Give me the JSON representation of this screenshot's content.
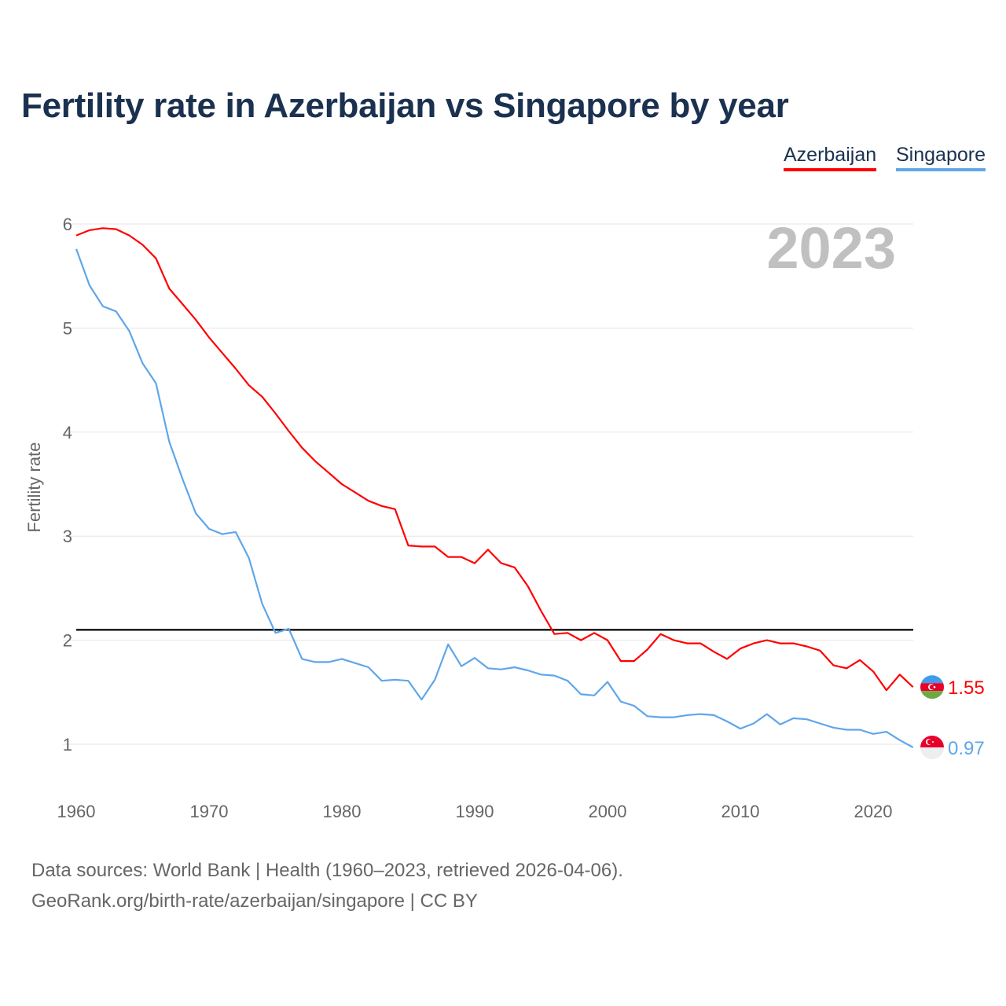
{
  "chart_data": {
    "type": "line",
    "title": "Fertility rate in Azerbaijan vs Singapore by year",
    "xlabel": "",
    "ylabel": "Fertility rate",
    "xlim": [
      1960,
      2023
    ],
    "ylim": [
      0.5,
      6.2
    ],
    "x_ticks": [
      1960,
      1970,
      1980,
      1990,
      2000,
      2010,
      2020
    ],
    "y_ticks": [
      1,
      2,
      3,
      4,
      5,
      6
    ],
    "grid": true,
    "year_label": "2023",
    "reference_line": 2.1,
    "x": [
      1960,
      1961,
      1962,
      1963,
      1964,
      1965,
      1966,
      1967,
      1968,
      1969,
      1970,
      1971,
      1972,
      1973,
      1974,
      1975,
      1976,
      1977,
      1978,
      1979,
      1980,
      1981,
      1982,
      1983,
      1984,
      1985,
      1986,
      1987,
      1988,
      1989,
      1990,
      1991,
      1992,
      1993,
      1994,
      1995,
      1996,
      1997,
      1998,
      1999,
      2000,
      2001,
      2002,
      2003,
      2004,
      2005,
      2006,
      2007,
      2008,
      2009,
      2010,
      2011,
      2012,
      2013,
      2014,
      2015,
      2016,
      2017,
      2018,
      2019,
      2020,
      2021,
      2022,
      2023
    ],
    "series": [
      {
        "name": "Azerbaijan",
        "color": "#ff0000",
        "end_label": "1.55",
        "values": [
          5.89,
          5.94,
          5.96,
          5.95,
          5.89,
          5.8,
          5.67,
          5.38,
          5.23,
          5.08,
          4.91,
          4.76,
          4.61,
          4.45,
          4.34,
          4.18,
          4.01,
          3.85,
          3.72,
          3.61,
          3.5,
          3.42,
          3.34,
          3.29,
          3.26,
          2.91,
          2.9,
          2.9,
          2.8,
          2.8,
          2.74,
          2.87,
          2.74,
          2.7,
          2.52,
          2.28,
          2.06,
          2.07,
          2.0,
          2.07,
          2.0,
          1.8,
          1.8,
          1.91,
          2.06,
          2.0,
          1.97,
          1.97,
          1.89,
          1.82,
          1.92,
          1.97,
          2.0,
          1.97,
          1.97,
          1.94,
          1.9,
          1.76,
          1.73,
          1.81,
          1.7,
          1.52,
          1.67,
          1.55
        ]
      },
      {
        "name": "Singapore",
        "color": "#5fa6ea",
        "end_label": "0.97",
        "values": [
          5.76,
          5.41,
          5.21,
          5.16,
          4.97,
          4.66,
          4.47,
          3.91,
          3.55,
          3.22,
          3.07,
          3.02,
          3.04,
          2.79,
          2.35,
          2.07,
          2.11,
          1.82,
          1.79,
          1.79,
          1.82,
          1.78,
          1.74,
          1.61,
          1.62,
          1.61,
          1.43,
          1.62,
          1.96,
          1.75,
          1.83,
          1.73,
          1.72,
          1.74,
          1.71,
          1.67,
          1.66,
          1.61,
          1.48,
          1.47,
          1.6,
          1.41,
          1.37,
          1.27,
          1.26,
          1.26,
          1.28,
          1.29,
          1.28,
          1.22,
          1.15,
          1.2,
          1.29,
          1.19,
          1.25,
          1.24,
          1.2,
          1.16,
          1.14,
          1.14,
          1.1,
          1.12,
          1.04,
          0.97
        ]
      }
    ],
    "legend": "top-right"
  },
  "footer": {
    "line1": "Data sources: World Bank | Health (1960–2023, retrieved 2026-04-06).",
    "line2": "GeoRank.org/birth-rate/azerbaijan/singapore | CC BY"
  }
}
